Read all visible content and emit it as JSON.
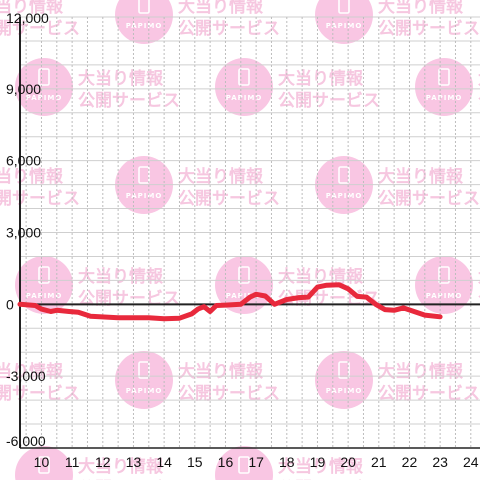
{
  "watermark": {
    "line1": "大当り情報",
    "line2": "公開サービス",
    "badge": "PAPIMO",
    "color": "#f9c6e3"
  },
  "chart_data": {
    "type": "line",
    "title": "",
    "xlabel": "",
    "ylabel": "",
    "xlim": [
      9.3,
      24.3
    ],
    "ylim": [
      -6000,
      12000
    ],
    "x_ticks": [
      "10",
      "11",
      "12",
      "13",
      "14",
      "15",
      "16",
      "17",
      "18",
      "19",
      "20",
      "21",
      "22",
      "23",
      "24"
    ],
    "y_ticks": [
      "12,000",
      "9,000",
      "6,000",
      "3,000",
      "0",
      "-3,000",
      "-6,000"
    ],
    "y_tick_values": [
      12000,
      9000,
      6000,
      3000,
      0,
      -3000,
      -6000
    ],
    "grid": true,
    "series_color": "#e8293c",
    "series": [
      {
        "x": [
          9.3,
          9.8,
          10.0,
          10.3,
          10.5,
          10.9,
          11.2,
          11.6,
          12.5,
          13.5,
          14.0,
          14.5,
          14.9,
          15.1,
          15.3,
          15.5,
          15.7,
          16.0,
          16.5,
          16.8,
          17.0,
          17.3,
          17.6,
          18.0,
          18.4,
          18.7,
          19.0,
          19.3,
          19.7,
          20.0,
          20.3,
          20.6,
          20.9,
          21.2,
          21.5,
          21.8,
          22.5,
          23.0
        ],
        "y": [
          0,
          -50,
          -200,
          -300,
          -250,
          -300,
          -330,
          -500,
          -560,
          -560,
          -600,
          -580,
          -400,
          -200,
          -100,
          -300,
          -50,
          -30,
          0,
          300,
          420,
          350,
          0,
          200,
          280,
          300,
          720,
          800,
          820,
          650,
          330,
          300,
          0,
          -220,
          -250,
          -150,
          -450,
          -520
        ]
      }
    ]
  }
}
